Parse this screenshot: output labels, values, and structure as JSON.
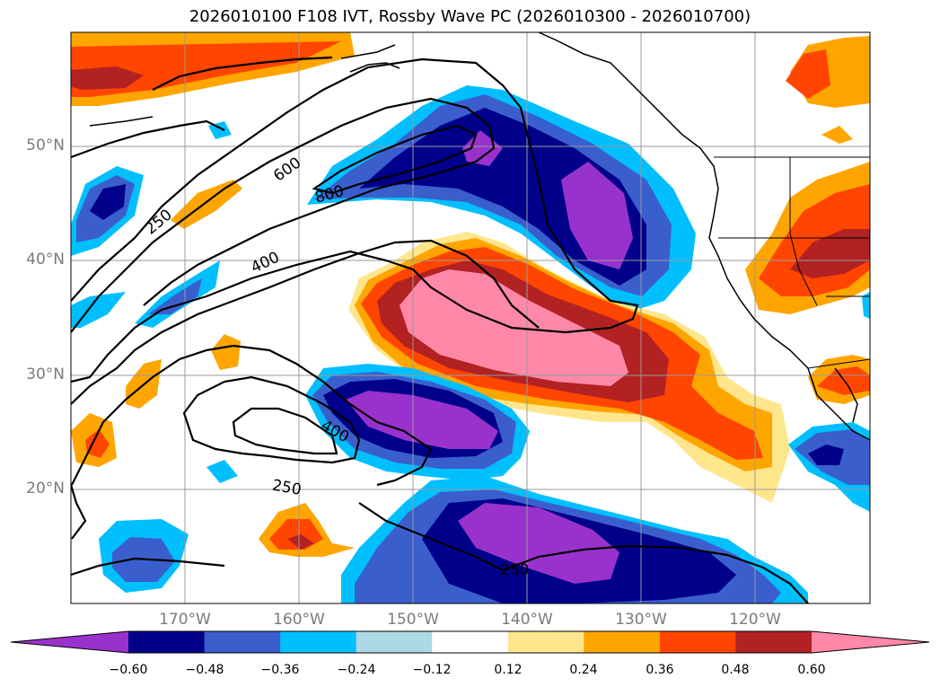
{
  "title": "2026010100 F108 IVT, Rossby Wave PC (2026010300 - 2026010700)",
  "map": {
    "lat_labels": [
      "50°N",
      "40°N",
      "30°N",
      "20°N"
    ],
    "lon_labels": [
      "170°W",
      "160°W",
      "150°W",
      "140°W",
      "130°W",
      "120°W"
    ],
    "contour_labels": [
      "600",
      "800",
      "250",
      "400",
      "400",
      "250",
      "250"
    ]
  },
  "colorbar": {
    "ticks": [
      "−0.60",
      "−0.48",
      "−0.36",
      "−0.24",
      "−0.12",
      "0.12",
      "0.24",
      "0.36",
      "0.48",
      "0.60"
    ],
    "colors": [
      "#9932cc",
      "#00008b",
      "#3a5fcd",
      "#00bfff",
      "#add8e6",
      "#ffffff",
      "#ffe68c",
      "#ffa500",
      "#ff4500",
      "#b22222",
      "#ff88a8"
    ]
  }
}
